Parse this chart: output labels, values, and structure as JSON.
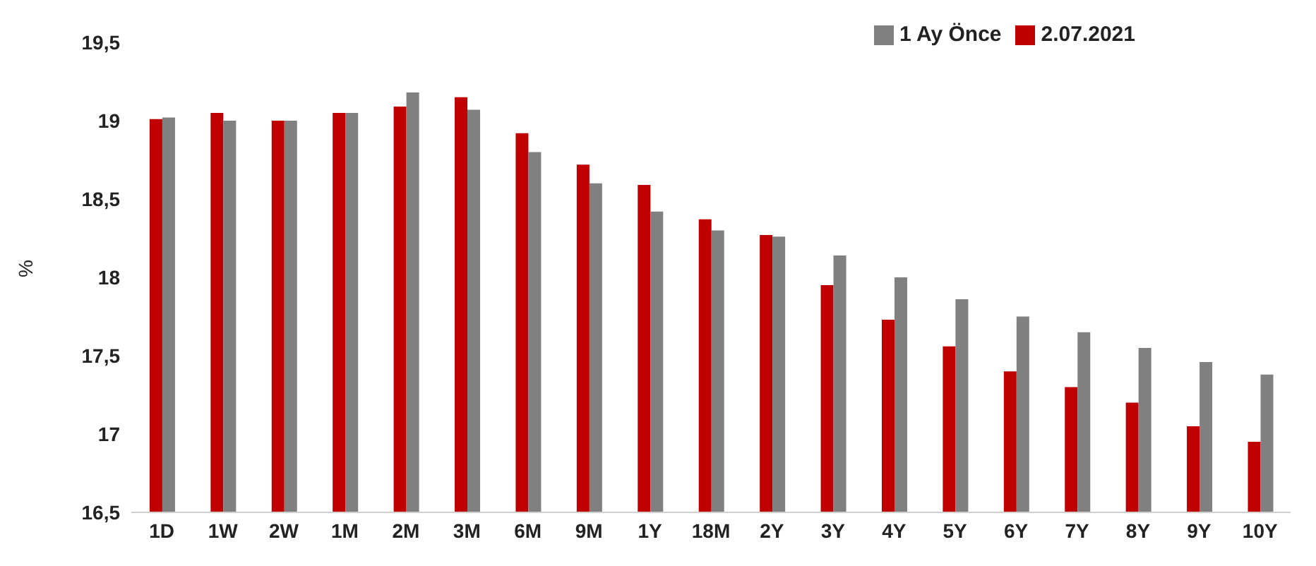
{
  "chart_data": {
    "type": "bar",
    "ylabel": "%",
    "categories": [
      "1D",
      "1W",
      "2W",
      "1M",
      "2M",
      "3M",
      "6M",
      "9M",
      "1Y",
      "18M",
      "2Y",
      "3Y",
      "4Y",
      "5Y",
      "6Y",
      "7Y",
      "8Y",
      "9Y",
      "10Y"
    ],
    "series": [
      {
        "name": "2.07.2021",
        "color": "#c00000",
        "values": [
          19.01,
          19.05,
          19.0,
          19.05,
          19.09,
          19.15,
          18.92,
          18.72,
          18.59,
          18.37,
          18.27,
          17.95,
          17.73,
          17.56,
          17.4,
          17.3,
          17.2,
          17.05,
          16.95
        ]
      },
      {
        "name": "1 Ay Önce",
        "color": "#808080",
        "values": [
          19.02,
          19.0,
          19.0,
          19.05,
          19.18,
          19.07,
          18.8,
          18.6,
          18.42,
          18.3,
          18.26,
          18.14,
          18.0,
          17.86,
          17.75,
          17.65,
          17.55,
          17.46,
          17.38
        ]
      }
    ],
    "ylim": [
      16.5,
      19.5
    ],
    "yticks": [
      {
        "value": 16.5,
        "label": "16,5"
      },
      {
        "value": 17,
        "label": "17"
      },
      {
        "value": 17.5,
        "label": "17,5"
      },
      {
        "value": 18,
        "label": "18"
      },
      {
        "value": 18.5,
        "label": "18,5"
      },
      {
        "value": 19,
        "label": "19"
      },
      {
        "value": 19.5,
        "label": "19,5"
      }
    ],
    "grid": false,
    "legend": "top right"
  }
}
